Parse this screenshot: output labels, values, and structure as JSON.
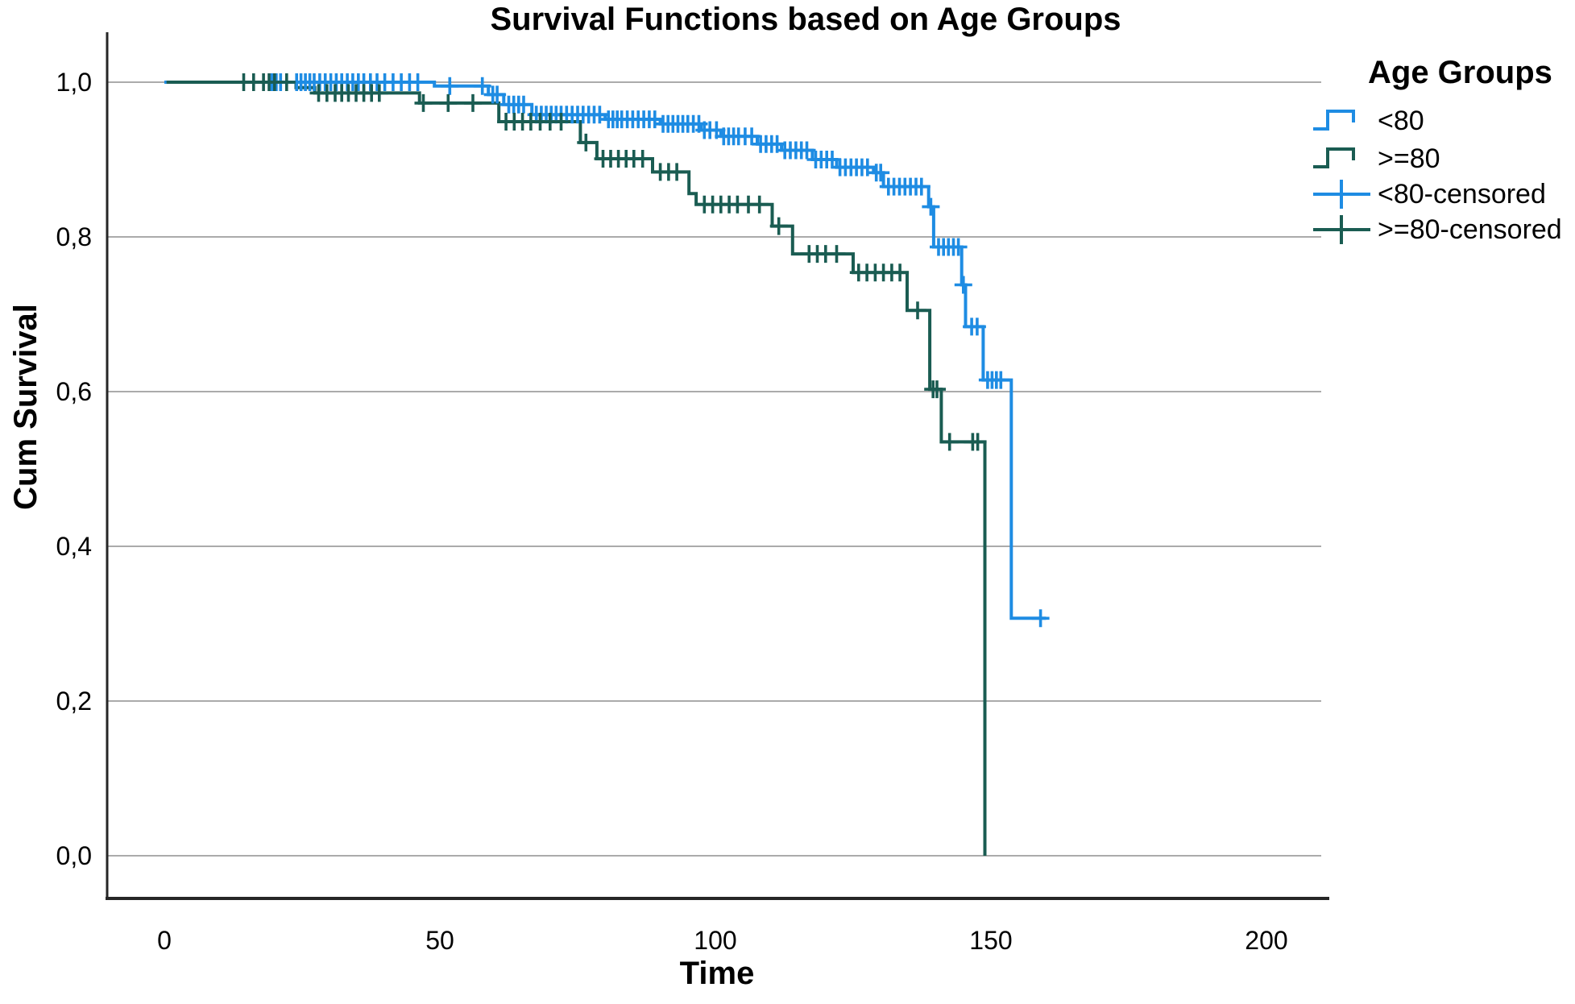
{
  "chart_data": {
    "type": "line",
    "subtype": "kaplan-meier-step-survival",
    "title": "Survival Functions based on Age Groups",
    "xlabel": "Time",
    "ylabel": "Cum Survival",
    "x_ticks": [
      0,
      50,
      100,
      150,
      200
    ],
    "y_ticks": [
      {
        "label": "0,0",
        "value": 0.0
      },
      {
        "label": "0,2",
        "value": 0.2
      },
      {
        "label": "0,4",
        "value": 0.4
      },
      {
        "label": "0,6",
        "value": 0.6
      },
      {
        "label": "0,8",
        "value": 0.8
      },
      {
        "label": "1,0",
        "value": 1.0
      }
    ],
    "xlim": [
      -10.4,
      210.5
    ],
    "ylim": [
      -0.055,
      1.065
    ],
    "grid": true,
    "colors": {
      "lt80": "#1E8CE3",
      "ge80": "#1A5C52",
      "gridline": "#ABABAB",
      "axis": "#262626"
    },
    "legend": {
      "title": "Age Groups",
      "position": "right-top",
      "entries": [
        {
          "label": "<80",
          "type": "line",
          "color": "#1E8CE3"
        },
        {
          "label": ">=80",
          "type": "line",
          "color": "#1A5C52"
        },
        {
          "label": "<80-censored",
          "type": "censor",
          "color": "#1E8CE3"
        },
        {
          "label": ">=80-censored",
          "type": "censor",
          "color": "#1A5C52"
        }
      ]
    },
    "series": [
      {
        "name": "<80",
        "color": "#1E8CE3",
        "end": 160,
        "steps": [
          [
            0,
            1.0
          ],
          [
            49,
            0.995
          ],
          [
            58.8,
            0.984
          ],
          [
            61.6,
            0.971
          ],
          [
            66.7,
            0.958
          ],
          [
            80,
            0.952
          ],
          [
            90,
            0.946
          ],
          [
            97.4,
            0.938
          ],
          [
            101,
            0.93
          ],
          [
            107.6,
            0.92
          ],
          [
            112,
            0.912
          ],
          [
            117.6,
            0.9
          ],
          [
            122,
            0.89
          ],
          [
            128.7,
            0.883
          ],
          [
            130.5,
            0.865
          ],
          [
            138.7,
            0.839
          ],
          [
            139.6,
            0.787
          ],
          [
            144.7,
            0.738
          ],
          [
            145.4,
            0.684
          ],
          [
            148.6,
            0.615
          ],
          [
            153.7,
            0.307
          ]
        ],
        "censored": [
          [
            19.5,
            1.0
          ],
          [
            20.3,
            1.0
          ],
          [
            21.1,
            1.0
          ],
          [
            24,
            1.0
          ],
          [
            24.8,
            1.0
          ],
          [
            25.6,
            1.0
          ],
          [
            26.4,
            1.0
          ],
          [
            27.2,
            1.0
          ],
          [
            28.2,
            1.0
          ],
          [
            29.2,
            1.0
          ],
          [
            30.2,
            1.0
          ],
          [
            31.2,
            1.0
          ],
          [
            32.2,
            1.0
          ],
          [
            33.2,
            1.0
          ],
          [
            34.2,
            1.0
          ],
          [
            35.2,
            1.0
          ],
          [
            36.2,
            1.0
          ],
          [
            37.4,
            1.0
          ],
          [
            38.6,
            1.0
          ],
          [
            40,
            1.0
          ],
          [
            41.5,
            1.0
          ],
          [
            43,
            1.0
          ],
          [
            44.5,
            1.0
          ],
          [
            46,
            1.0
          ],
          [
            51.8,
            0.995
          ],
          [
            57.7,
            0.995
          ],
          [
            59.6,
            0.984
          ],
          [
            60.4,
            0.984
          ],
          [
            62.5,
            0.971
          ],
          [
            63.4,
            0.971
          ],
          [
            64.3,
            0.971
          ],
          [
            65.2,
            0.971
          ],
          [
            67.5,
            0.958
          ],
          [
            68.4,
            0.958
          ],
          [
            69.3,
            0.958
          ],
          [
            70.2,
            0.958
          ],
          [
            71.1,
            0.958
          ],
          [
            72,
            0.958
          ],
          [
            73,
            0.958
          ],
          [
            74,
            0.958
          ],
          [
            75,
            0.958
          ],
          [
            76,
            0.958
          ],
          [
            77,
            0.958
          ],
          [
            78,
            0.958
          ],
          [
            79,
            0.958
          ],
          [
            80.6,
            0.952
          ],
          [
            81.4,
            0.952
          ],
          [
            82.2,
            0.952
          ],
          [
            83,
            0.952
          ],
          [
            84,
            0.952
          ],
          [
            85,
            0.952
          ],
          [
            86,
            0.952
          ],
          [
            87,
            0.952
          ],
          [
            88,
            0.952
          ],
          [
            89,
            0.952
          ],
          [
            90.5,
            0.946
          ],
          [
            91.4,
            0.946
          ],
          [
            92.3,
            0.946
          ],
          [
            93.2,
            0.946
          ],
          [
            94.1,
            0.946
          ],
          [
            95,
            0.946
          ],
          [
            96,
            0.946
          ],
          [
            97,
            0.946
          ],
          [
            98,
            0.938
          ],
          [
            99,
            0.938
          ],
          [
            100.2,
            0.938
          ],
          [
            101.5,
            0.93
          ],
          [
            102.4,
            0.93
          ],
          [
            103.3,
            0.93
          ],
          [
            104.2,
            0.93
          ],
          [
            105.4,
            0.93
          ],
          [
            106.6,
            0.93
          ],
          [
            108.2,
            0.92
          ],
          [
            109.2,
            0.92
          ],
          [
            110.2,
            0.92
          ],
          [
            111.2,
            0.92
          ],
          [
            112.6,
            0.912
          ],
          [
            113.6,
            0.912
          ],
          [
            114.6,
            0.912
          ],
          [
            115.6,
            0.912
          ],
          [
            116.6,
            0.912
          ],
          [
            118.2,
            0.9
          ],
          [
            119.2,
            0.9
          ],
          [
            120.2,
            0.9
          ],
          [
            121.2,
            0.9
          ],
          [
            122.6,
            0.89
          ],
          [
            123.6,
            0.89
          ],
          [
            124.6,
            0.89
          ],
          [
            125.6,
            0.89
          ],
          [
            126.6,
            0.89
          ],
          [
            127.6,
            0.89
          ],
          [
            129.2,
            0.883
          ],
          [
            130,
            0.883
          ],
          [
            131.4,
            0.865
          ],
          [
            132.4,
            0.865
          ],
          [
            133.4,
            0.865
          ],
          [
            134.4,
            0.865
          ],
          [
            135.4,
            0.865
          ],
          [
            136.4,
            0.865
          ],
          [
            137.4,
            0.865
          ],
          [
            139.1,
            0.839
          ],
          [
            140.5,
            0.787
          ],
          [
            141.4,
            0.787
          ],
          [
            142.3,
            0.787
          ],
          [
            143.2,
            0.787
          ],
          [
            144.1,
            0.787
          ],
          [
            145,
            0.738
          ],
          [
            146.5,
            0.684
          ],
          [
            147.5,
            0.684
          ],
          [
            149.4,
            0.615
          ],
          [
            150.2,
            0.615
          ],
          [
            151,
            0.615
          ],
          [
            151.8,
            0.615
          ],
          [
            159,
            0.307
          ]
        ]
      },
      {
        "name": ">=80",
        "color": "#1A5C52",
        "end": 148.9,
        "steps": [
          [
            0.4,
            1.0
          ],
          [
            23.9,
            0.993
          ],
          [
            27.3,
            0.986
          ],
          [
            46.3,
            0.973
          ],
          [
            60.7,
            0.949
          ],
          [
            75.5,
            0.922
          ],
          [
            78.5,
            0.901
          ],
          [
            88.6,
            0.884
          ],
          [
            95.2,
            0.856
          ],
          [
            96.5,
            0.842
          ],
          [
            110.3,
            0.814
          ],
          [
            114,
            0.778
          ],
          [
            125,
            0.754
          ],
          [
            134.8,
            0.705
          ],
          [
            138.9,
            0.603
          ],
          [
            141,
            0.535
          ],
          [
            148.9,
            0.0
          ]
        ],
        "censored": [
          [
            14.4,
            1.0
          ],
          [
            16.2,
            1.0
          ],
          [
            18,
            1.0
          ],
          [
            19,
            1.0
          ],
          [
            20,
            1.0
          ],
          [
            22.2,
            1.0
          ],
          [
            28,
            0.986
          ],
          [
            29.5,
            0.986
          ],
          [
            31,
            0.986
          ],
          [
            32.2,
            0.986
          ],
          [
            33.4,
            0.986
          ],
          [
            34.8,
            0.986
          ],
          [
            36.2,
            0.986
          ],
          [
            37.6,
            0.986
          ],
          [
            39,
            0.986
          ],
          [
            47,
            0.973
          ],
          [
            51.5,
            0.973
          ],
          [
            56,
            0.973
          ],
          [
            62,
            0.949
          ],
          [
            63.5,
            0.949
          ],
          [
            65,
            0.949
          ],
          [
            66.5,
            0.949
          ],
          [
            68.2,
            0.949
          ],
          [
            70,
            0.949
          ],
          [
            72,
            0.949
          ],
          [
            76.5,
            0.922
          ],
          [
            79.6,
            0.901
          ],
          [
            81,
            0.901
          ],
          [
            82.4,
            0.901
          ],
          [
            83.8,
            0.901
          ],
          [
            85.2,
            0.901
          ],
          [
            86.8,
            0.901
          ],
          [
            90,
            0.884
          ],
          [
            91.5,
            0.884
          ],
          [
            93,
            0.884
          ],
          [
            98,
            0.842
          ],
          [
            99.5,
            0.842
          ],
          [
            101,
            0.842
          ],
          [
            102.5,
            0.842
          ],
          [
            104,
            0.842
          ],
          [
            106,
            0.842
          ],
          [
            108,
            0.842
          ],
          [
            111.5,
            0.814
          ],
          [
            117,
            0.778
          ],
          [
            118.5,
            0.778
          ],
          [
            120,
            0.778
          ],
          [
            122,
            0.778
          ],
          [
            126,
            0.754
          ],
          [
            127.5,
            0.754
          ],
          [
            129,
            0.754
          ],
          [
            130.5,
            0.754
          ],
          [
            132,
            0.754
          ],
          [
            133.5,
            0.754
          ],
          [
            136.7,
            0.705
          ],
          [
            139.5,
            0.603
          ],
          [
            140.2,
            0.603
          ],
          [
            142.5,
            0.535
          ],
          [
            146.7,
            0.535
          ],
          [
            147.6,
            0.535
          ]
        ]
      }
    ]
  }
}
